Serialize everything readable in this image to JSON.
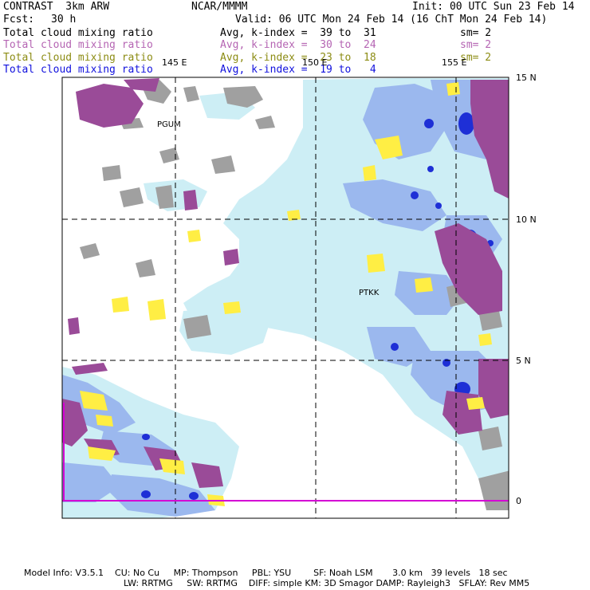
{
  "header": {
    "model": "CONTRAST  3km ARW",
    "org": "NCAR/MMMM",
    "init": "Init: 00 UTC Sun 23 Feb 14",
    "fcst_label": "Fcst:",
    "fcst_value": "30 h",
    "valid": "Valid: 06 UTC Mon 24 Feb 14 (16 ChT Mon 24 Feb 14)"
  },
  "legend": [
    {
      "field": "Total cloud mixing ratio",
      "range": "Avg, k-index =  39 to  31",
      "smooth": "sm= 2",
      "color": "#000000"
    },
    {
      "field": "Total cloud mixing ratio",
      "range": "Avg, k-index =  30 to  24",
      "smooth": "sm= 2",
      "color": "#b565b3"
    },
    {
      "field": "Total cloud mixing ratio",
      "range": "Avg, k-index =  23 to  18",
      "smooth": "sm= 2",
      "color": "#8c8c14"
    },
    {
      "field": "Total cloud mixing ratio",
      "range": "Avg, k-index =  19 to   4",
      "smooth": "",
      "color": "#1111dd"
    }
  ],
  "map": {
    "lon_labels": [
      "145 E",
      "150 E",
      "155 E"
    ],
    "lat_labels": [
      "15 N",
      "10 N",
      "5 N",
      "0"
    ],
    "stations": [
      "PGUM",
      "PTKK"
    ],
    "colors": {
      "gray": "#a0a0a0",
      "purple": "#9a4b98",
      "yellow": "#ffee44",
      "light_cyan": "#cdeef5",
      "mid_blue": "#9bb8ee",
      "deep_blue": "#1e2fd6",
      "equator_line": "#d400d4"
    }
  },
  "footer": {
    "line1": "Model Info: V3.5.1    CU: No Cu     MP: Thompson     PBL: YSU        SF: Noah LSM       3.0 km   39 levels   18 sec",
    "line2": "LW: RRTMG     SW: RRTMG    DIFF: simple KM: 3D Smagor DAMP: Rayleigh3   SFLAY: Rev MM5"
  }
}
